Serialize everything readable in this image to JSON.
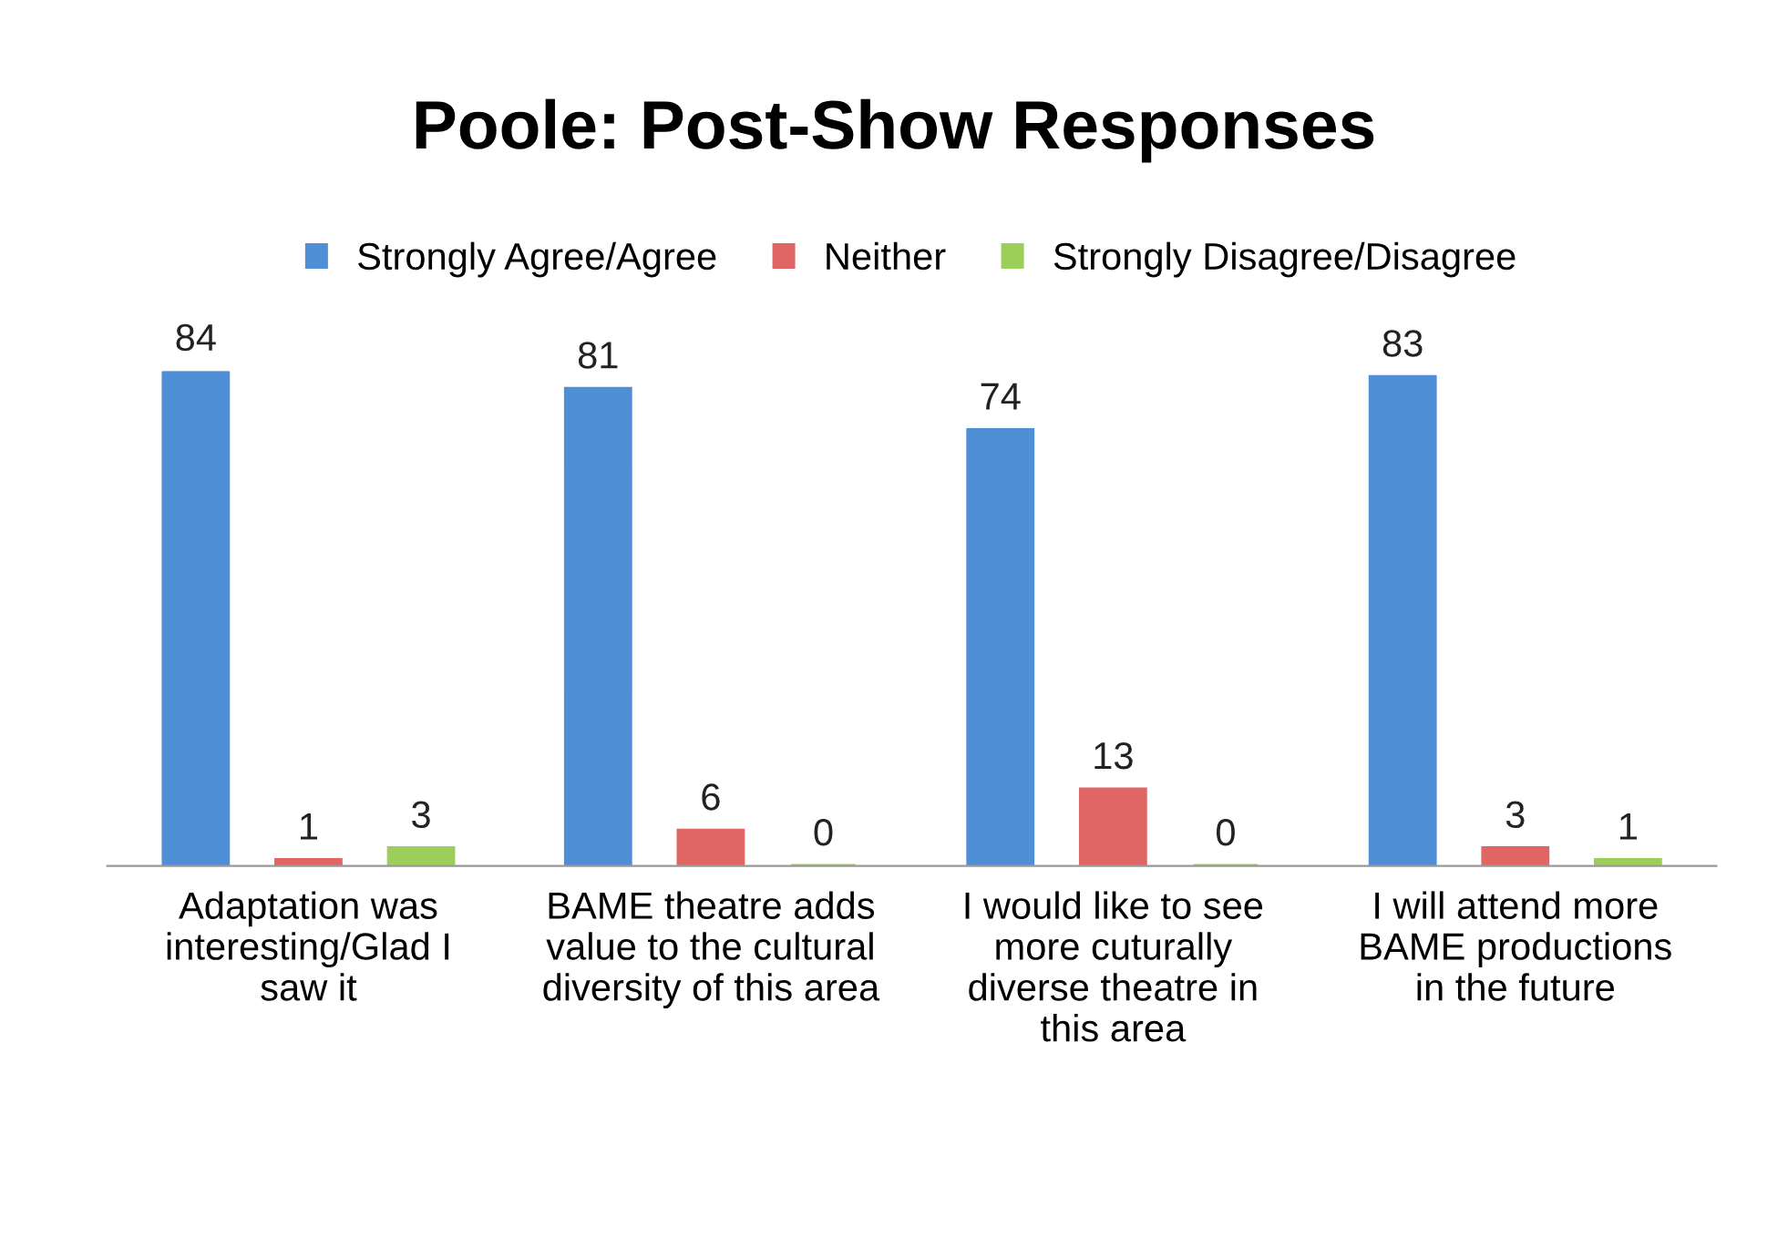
{
  "chart_data": {
    "type": "bar",
    "title": "Poole: Post-Show Responses",
    "categories": [
      "Adaptation was\ninteresting/Glad I\nsaw it",
      "BAME theatre adds\nvalue to the cultural\ndiversity of this area",
      "I would like to see\nmore cuturally\ndiverse theatre in\nthis area",
      "I will attend more\nBAME productions\nin the future"
    ],
    "series": [
      {
        "name": "Strongly Agree/Agree",
        "color": "#4f8fd6",
        "values": [
          84,
          81,
          74,
          83
        ]
      },
      {
        "name": "Neither",
        "color": "#e06666",
        "values": [
          1,
          6,
          13,
          3
        ]
      },
      {
        "name": "Strongly Disagree/Disagree",
        "color": "#9bcf5a",
        "values": [
          3,
          0,
          0,
          1
        ]
      }
    ],
    "data_labels": true,
    "legend": "top",
    "grid": false,
    "tick_labels": "x"
  }
}
